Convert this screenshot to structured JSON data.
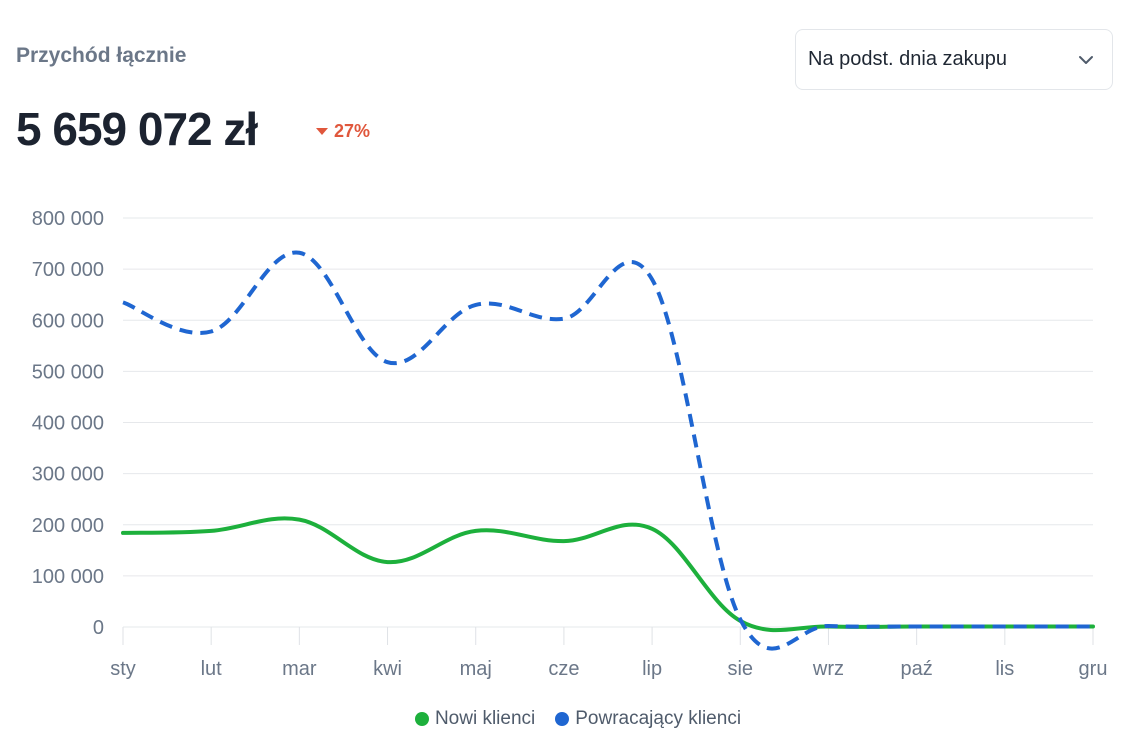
{
  "widget": {
    "title": "Przychód łącznie",
    "total": "5 659 072 zł",
    "delta": "27%",
    "delta_color": "#e0573c",
    "dropdown_label": "Na podst. dnia zakupu",
    "dropdown_icon": "chevron-down-icon"
  },
  "chart_data": {
    "type": "line",
    "categories": [
      "sty",
      "lut",
      "mar",
      "kwi",
      "maj",
      "cze",
      "lip",
      "sie",
      "wrz",
      "paź",
      "lis",
      "gru"
    ],
    "ylim": [
      0,
      800000
    ],
    "yticks": [
      0,
      100000,
      200000,
      300000,
      400000,
      500000,
      600000,
      700000,
      800000
    ],
    "ytick_labels": [
      "0",
      "100 000",
      "200 000",
      "300 000",
      "400 000",
      "500 000",
      "600 000",
      "700 000",
      "800 000"
    ],
    "grid": true,
    "legend_position": "bottom",
    "series": [
      {
        "name": "Nowi klienci",
        "color": "#1db03c",
        "style": "solid",
        "values": [
          184000,
          188000,
          210000,
          127000,
          188000,
          168000,
          192000,
          12000,
          1000,
          1000,
          1000,
          1000
        ]
      },
      {
        "name": "Powracający klienci",
        "color": "#1f66d1",
        "style": "dashed",
        "values": [
          635000,
          578000,
          732000,
          518000,
          630000,
          603000,
          680000,
          15000,
          2000,
          1000,
          1000,
          1000
        ]
      }
    ]
  }
}
